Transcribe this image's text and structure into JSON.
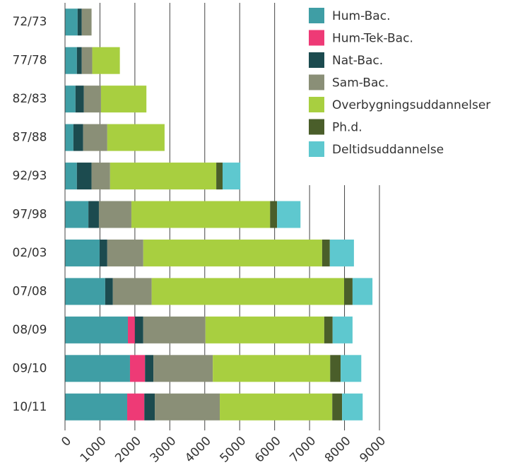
{
  "chart_data": {
    "type": "stacked-bar-horizontal",
    "categories": [
      "72/73",
      "77/78",
      "82/83",
      "87/88",
      "92/93",
      "97/98",
      "02/03",
      "07/08",
      "08/09",
      "09/10",
      "10/11"
    ],
    "series": [
      {
        "name": "Hum-Bac.",
        "color": "#3f9ea5",
        "values": [
          360,
          340,
          300,
          240,
          340,
          670,
          990,
          1150,
          1800,
          1860,
          1780
        ]
      },
      {
        "name": "Hum-Tek-Bac.",
        "color": "#ee3a76",
        "values": [
          0,
          0,
          0,
          0,
          0,
          0,
          0,
          0,
          200,
          430,
          490
        ]
      },
      {
        "name": "Nat-Bac.",
        "color": "#1c4b4f",
        "values": [
          120,
          140,
          240,
          280,
          420,
          300,
          220,
          220,
          240,
          240,
          300
        ]
      },
      {
        "name": "Sam-Bac.",
        "color": "#8a8f77",
        "values": [
          280,
          300,
          490,
          690,
          530,
          930,
          1030,
          1110,
          1780,
          1700,
          1860
        ]
      },
      {
        "name": "Overbygningsuddannelser",
        "color": "#a8cf40",
        "values": [
          0,
          790,
          1300,
          1640,
          3040,
          3970,
          5120,
          5510,
          3400,
          3360,
          3220
        ]
      },
      {
        "name": "Ph.d.",
        "color": "#4a5e2a",
        "values": [
          0,
          0,
          0,
          0,
          180,
          200,
          220,
          240,
          240,
          300,
          280
        ]
      },
      {
        "name": "Deltidsuddannelse",
        "color": "#5ec8cf",
        "values": [
          0,
          0,
          0,
          0,
          510,
          670,
          690,
          570,
          570,
          590,
          590
        ]
      }
    ],
    "xlim": [
      0,
      9000
    ],
    "xticks": [
      0,
      1000,
      2000,
      3000,
      4000,
      5000,
      6000,
      7000,
      8000,
      9000
    ],
    "grid": true
  }
}
